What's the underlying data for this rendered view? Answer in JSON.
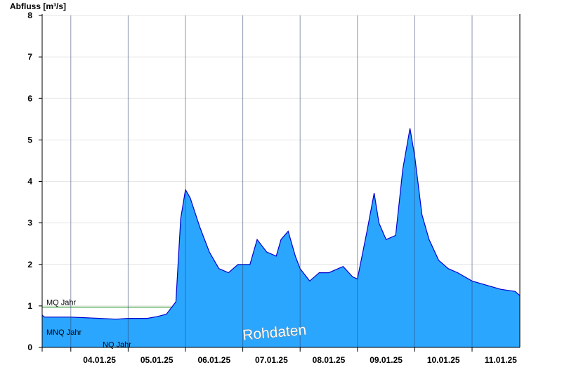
{
  "chart_data": {
    "type": "area",
    "title": "",
    "ylabel": "Abfluss [m³/s]",
    "xlabel": "",
    "ylim": [
      0,
      8
    ],
    "y_ticks": [
      0,
      1,
      2,
      3,
      4,
      5,
      6,
      7,
      8
    ],
    "xlim": [
      "2025-01-03T12:00",
      "2025-01-11T20:00"
    ],
    "x_ticks": [
      {
        "date": "2025-01-04T00:00",
        "label": "04.01.25"
      },
      {
        "date": "2025-01-05T00:00",
        "label": "05.01.25"
      },
      {
        "date": "2025-01-06T00:00",
        "label": "06.01.25"
      },
      {
        "date": "2025-01-07T00:00",
        "label": "07.01.25"
      },
      {
        "date": "2025-01-08T00:00",
        "label": "08.01.25"
      },
      {
        "date": "2025-01-09T00:00",
        "label": "09.01.25"
      },
      {
        "date": "2025-01-10T00:00",
        "label": "10.01.25"
      },
      {
        "date": "2025-01-11T00:00",
        "label": "11.01.25"
      }
    ],
    "grid": true,
    "fill_color": "#2ba6ff",
    "line_color": "#0000cc",
    "reference_lines": [
      {
        "label": "MQ Jahr",
        "value": 0.97,
        "color": "#008000"
      },
      {
        "label": "MNQ Jahr",
        "value": 0.25,
        "color": "#000000"
      },
      {
        "label": "NQ Jahr",
        "value": 0.16,
        "color": "#000000"
      }
    ],
    "watermark": "Rohdaten",
    "series": [
      {
        "x": [
          "2025-01-03T12:00",
          "2025-01-03T13:00",
          "2025-01-04T00:00",
          "2025-01-04T12:00",
          "2025-01-04T19:00",
          "2025-01-05T00:00",
          "2025-01-05T08:00",
          "2025-01-05T12:00",
          "2025-01-05T16:00",
          "2025-01-05T20:00",
          "2025-01-05T22:00",
          "2025-01-06T00:00",
          "2025-01-06T02:00",
          "2025-01-06T06:00",
          "2025-01-06T10:00",
          "2025-01-06T14:00",
          "2025-01-06T18:00",
          "2025-01-06T22:00",
          "2025-01-07T00:00",
          "2025-01-07T03:00",
          "2025-01-07T06:00",
          "2025-01-07T10:00",
          "2025-01-07T14:00",
          "2025-01-07T16:00",
          "2025-01-07T19:00",
          "2025-01-07T22:00",
          "2025-01-08T00:00",
          "2025-01-08T04:00",
          "2025-01-08T08:00",
          "2025-01-08T12:00",
          "2025-01-08T18:00",
          "2025-01-08T22:00",
          "2025-01-09T00:00",
          "2025-01-09T04:00",
          "2025-01-09T07:00",
          "2025-01-09T09:00",
          "2025-01-09T12:00",
          "2025-01-09T16:00",
          "2025-01-09T19:00",
          "2025-01-09T22:00",
          "2025-01-10T00:00",
          "2025-01-10T03:00",
          "2025-01-10T06:00",
          "2025-01-10T10:00",
          "2025-01-10T14:00",
          "2025-01-10T18:00",
          "2025-01-11T00:00",
          "2025-01-11T06:00",
          "2025-01-11T12:00",
          "2025-01-11T18:00",
          "2025-01-11T20:00"
        ],
        "values": [
          0.78,
          0.73,
          0.73,
          0.7,
          0.68,
          0.7,
          0.7,
          0.74,
          0.8,
          1.1,
          3.1,
          3.8,
          3.6,
          2.9,
          2.3,
          1.9,
          1.8,
          2.0,
          2.0,
          2.0,
          2.6,
          2.3,
          2.2,
          2.6,
          2.8,
          2.2,
          1.9,
          1.6,
          1.8,
          1.8,
          1.95,
          1.7,
          1.65,
          2.8,
          3.72,
          3.0,
          2.6,
          2.7,
          4.3,
          5.28,
          4.6,
          3.2,
          2.6,
          2.1,
          1.9,
          1.8,
          1.6,
          1.5,
          1.4,
          1.35,
          1.25
        ]
      }
    ]
  }
}
